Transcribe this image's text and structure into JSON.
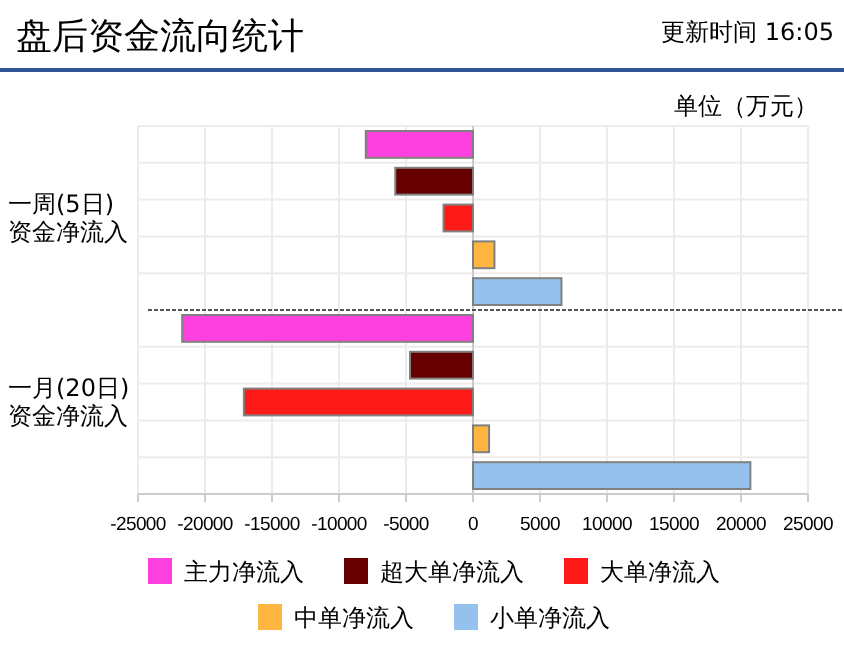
{
  "chart_data": {
    "type": "bar",
    "orientation": "horizontal",
    "title": "盘后资金流向统计",
    "annotations": [
      "更新时间  16:05",
      "单位（万元）"
    ],
    "categories": [
      "一周(5日)\n资金净流入",
      "一月(20日)\n资金净流入"
    ],
    "series": [
      {
        "name": "主力净流入",
        "color": "#ff40e0",
        "values": [
          -8000,
          -21700
        ]
      },
      {
        "name": "超大单净流入",
        "color": "#660000",
        "values": [
          -5800,
          -4700
        ]
      },
      {
        "name": "大单净流入",
        "color": "#ff1a1a",
        "values": [
          -2200,
          -17100
        ]
      },
      {
        "name": "中单净流入",
        "color": "#ffb640",
        "values": [
          1600,
          1200
        ]
      },
      {
        "name": "小单净流入",
        "color": "#94c2ec",
        "values": [
          6600,
          20700
        ]
      }
    ],
    "xlim": [
      -25000,
      25000
    ],
    "xticks": [
      -25000,
      -20000,
      -15000,
      -10000,
      -5000,
      0,
      5000,
      10000,
      15000,
      20000,
      25000
    ],
    "grid": true,
    "legend": "bottom"
  }
}
